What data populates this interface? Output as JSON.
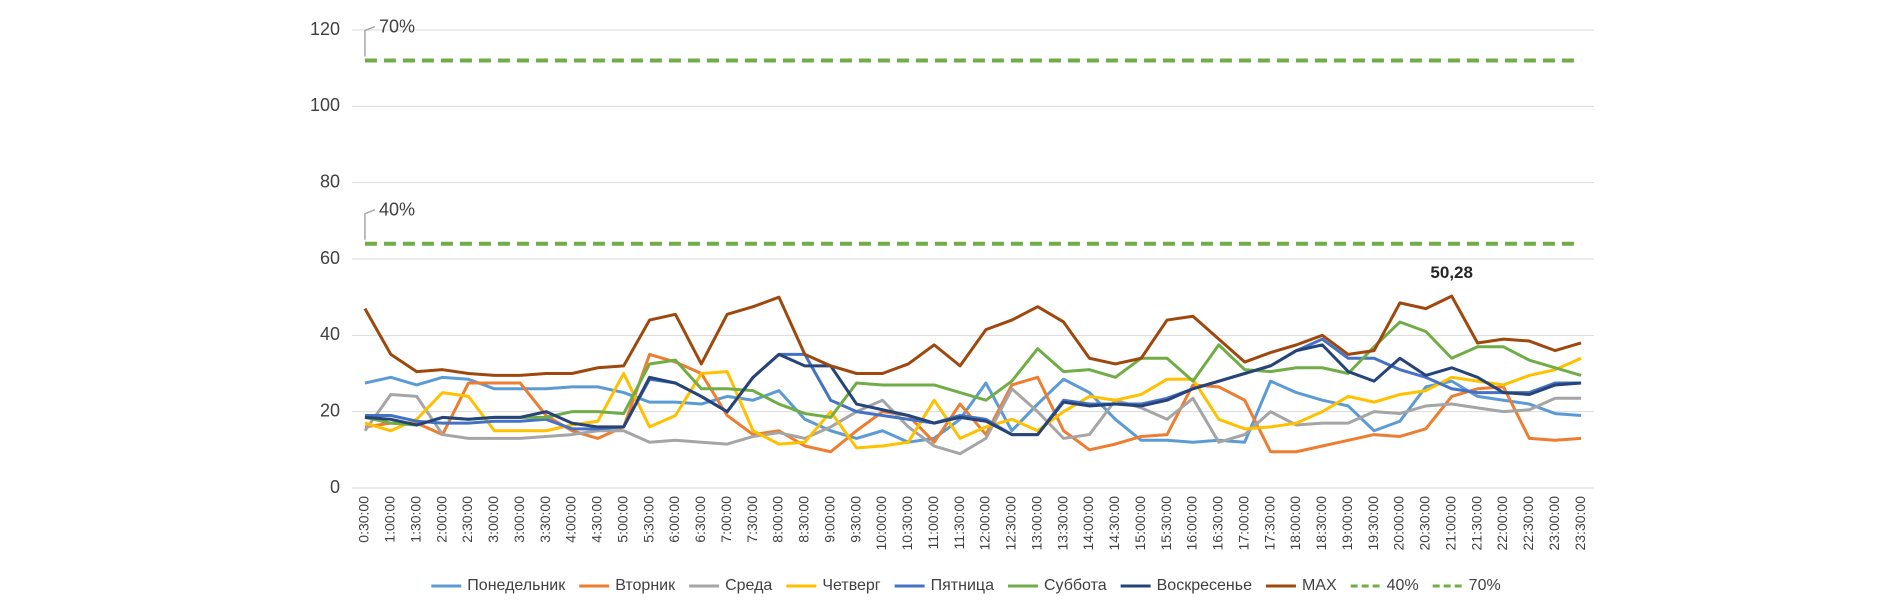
{
  "chart_data": {
    "type": "line",
    "categories": [
      "0:30:00",
      "1:00:00",
      "1:30:00",
      "2:00:00",
      "2:30:00",
      "3:00:00",
      "3:00:00",
      "3:30:00",
      "4:00:00",
      "4:30:00",
      "5:00:00",
      "5:30:00",
      "6:00:00",
      "6:30:00",
      "7:00:00",
      "7:30:00",
      "8:00:00",
      "8:30:00",
      "9:00:00",
      "9:30:00",
      "10:00:00",
      "10:30:00",
      "11:00:00",
      "11:30:00",
      "12:00:00",
      "12:30:00",
      "13:00:00",
      "13:30:00",
      "14:00:00",
      "14:30:00",
      "15:00:00",
      "15:30:00",
      "16:00:00",
      "16:30:00",
      "17:00:00",
      "17:30:00",
      "18:00:00",
      "18:30:00",
      "19:00:00",
      "19:30:00",
      "20:00:00",
      "20:30:00",
      "21:00:00",
      "21:30:00",
      "22:00:00",
      "22:30:00",
      "23:00:00",
      "23:30:00"
    ],
    "series": [
      {
        "name": "Понедельник",
        "color": "#5b9bd5",
        "values": [
          27.5,
          29,
          27,
          29,
          28.5,
          26,
          26,
          26,
          26.5,
          26.5,
          25,
          22.5,
          22.5,
          22,
          24,
          23,
          25.5,
          18,
          15,
          13,
          15,
          12,
          13,
          18,
          27.5,
          15,
          22,
          28.5,
          25,
          18,
          12.5,
          12.5,
          12,
          12.5,
          12,
          28,
          25,
          23,
          21.5,
          15,
          17.5,
          26.5,
          28,
          24,
          23,
          22,
          19.5,
          19
        ]
      },
      {
        "name": "Вторник",
        "color": "#ed7d31",
        "values": [
          16,
          17,
          17,
          14,
          27.5,
          27.5,
          27.5,
          19,
          15,
          13,
          16,
          35,
          33,
          30,
          19,
          14,
          15,
          11,
          9.5,
          15,
          20,
          19,
          12,
          22,
          14,
          27,
          29,
          15,
          10,
          11.5,
          13.5,
          14,
          27,
          26.5,
          23,
          9.5,
          9.5,
          11,
          12.5,
          14,
          13.5,
          15.5,
          24,
          26,
          26.5,
          13,
          12.5,
          13
        ]
      },
      {
        "name": "Среда",
        "color": "#a5a5a5",
        "values": [
          15,
          24.5,
          24,
          14,
          13,
          13,
          13,
          13.5,
          14,
          15,
          15,
          12,
          12.5,
          12,
          11.5,
          13.5,
          14.5,
          13,
          16,
          20,
          23,
          16,
          11,
          9,
          13,
          26,
          20,
          13,
          14,
          23,
          21,
          18,
          23.5,
          12,
          14,
          20,
          16.5,
          17,
          17,
          20,
          19.5,
          21.5,
          22,
          21,
          20,
          20.5,
          23.5,
          23.5
        ]
      },
      {
        "name": "Четверг",
        "color": "#ffc000",
        "values": [
          17,
          15,
          18,
          25,
          24,
          15,
          15,
          15,
          16.5,
          17.5,
          30,
          16,
          19,
          30,
          30.5,
          15,
          11.5,
          12,
          20,
          10.5,
          11,
          12,
          23,
          13,
          16,
          18,
          15,
          20,
          24,
          23,
          24.5,
          28.5,
          28.5,
          18,
          15.5,
          16,
          17,
          20,
          24,
          22.5,
          24.5,
          25.5,
          29,
          28,
          27,
          29.5,
          31,
          34
        ]
      },
      {
        "name": "Пятница",
        "color": "#4472c4",
        "values": [
          19,
          19,
          17.5,
          17,
          17,
          17.5,
          17.5,
          18,
          15.5,
          15.5,
          16,
          28.5,
          27.5,
          24,
          20,
          29,
          35,
          35,
          23,
          20,
          19,
          18,
          17,
          19,
          18,
          14,
          14,
          23,
          22,
          22,
          22,
          23.5,
          26,
          28,
          30,
          32,
          36,
          39,
          34,
          34,
          31,
          29,
          26,
          25,
          25,
          25,
          27.5,
          27.5
        ]
      },
      {
        "name": "Суббота",
        "color": "#70ad47",
        "values": [
          18.5,
          17,
          16.5,
          18.5,
          18,
          18.5,
          18.5,
          18.5,
          20,
          20,
          19.5,
          32.5,
          33.5,
          26,
          26,
          25.5,
          22,
          19.5,
          18.5,
          27.5,
          27,
          27,
          27,
          25,
          23,
          28,
          36.5,
          30.5,
          31,
          29,
          34,
          34,
          28,
          37.5,
          31,
          30.5,
          31.5,
          31.5,
          30,
          37,
          43.5,
          41,
          34,
          37,
          37,
          33.5,
          31.5,
          29.5
        ]
      },
      {
        "name": "Воскресенье",
        "color": "#264478",
        "values": [
          18.5,
          18,
          16.5,
          18.5,
          18,
          18.5,
          18.5,
          20,
          17,
          16,
          16,
          29,
          27.5,
          24,
          20,
          29,
          35,
          32,
          32,
          22,
          20.5,
          19,
          17,
          18.5,
          17.5,
          14,
          14,
          22.5,
          21.5,
          22,
          21.5,
          23,
          26,
          28,
          30,
          32,
          36,
          37.5,
          30.5,
          28,
          34,
          29.5,
          31.5,
          29,
          25,
          24.5,
          27,
          27.5
        ]
      },
      {
        "name": "MAX",
        "color": "#9e480e",
        "values": [
          47,
          35,
          30.5,
          31,
          30,
          29.5,
          29.5,
          30,
          30,
          31.5,
          32,
          44,
          45.5,
          32.5,
          45.5,
          47.5,
          50,
          35,
          32,
          30,
          30,
          32.5,
          37.5,
          32,
          41.5,
          44,
          47.5,
          43.5,
          34,
          32.5,
          34,
          44,
          45,
          39,
          33,
          35.5,
          37.5,
          40,
          35,
          36,
          48.5,
          47,
          50.28,
          38,
          39,
          38.5,
          36,
          38
        ],
        "value_labels": [
          null,
          null,
          null,
          null,
          null,
          null,
          null,
          null,
          null,
          null,
          null,
          null,
          null,
          null,
          null,
          null,
          null,
          null,
          null,
          null,
          null,
          null,
          null,
          null,
          null,
          null,
          null,
          null,
          null,
          null,
          null,
          null,
          null,
          null,
          null,
          null,
          null,
          null,
          null,
          null,
          null,
          null,
          "50,28",
          null,
          null,
          null,
          null,
          null
        ]
      },
      {
        "name": "40%",
        "color": "#70ad47",
        "dashed": true,
        "values": [
          64,
          64,
          64,
          64,
          64,
          64,
          64,
          64,
          64,
          64,
          64,
          64,
          64,
          64,
          64,
          64,
          64,
          64,
          64,
          64,
          64,
          64,
          64,
          64,
          64,
          64,
          64,
          64,
          64,
          64,
          64,
          64,
          64,
          64,
          64,
          64,
          64,
          64,
          64,
          64,
          64,
          64,
          64,
          64,
          64,
          64,
          64,
          64
        ]
      },
      {
        "name": "70%",
        "color": "#70ad47",
        "dashed": true,
        "values": [
          112,
          112,
          112,
          112,
          112,
          112,
          112,
          112,
          112,
          112,
          112,
          112,
          112,
          112,
          112,
          112,
          112,
          112,
          112,
          112,
          112,
          112,
          112,
          112,
          112,
          112,
          112,
          112,
          112,
          112,
          112,
          112,
          112,
          112,
          112,
          112,
          112,
          112,
          112,
          112,
          112,
          112,
          112,
          112,
          112,
          112,
          112,
          112
        ]
      }
    ],
    "ylim": [
      0,
      120
    ],
    "yticks": [
      0,
      20,
      40,
      60,
      80,
      100,
      120
    ],
    "grid": true,
    "legend": "bottom"
  }
}
